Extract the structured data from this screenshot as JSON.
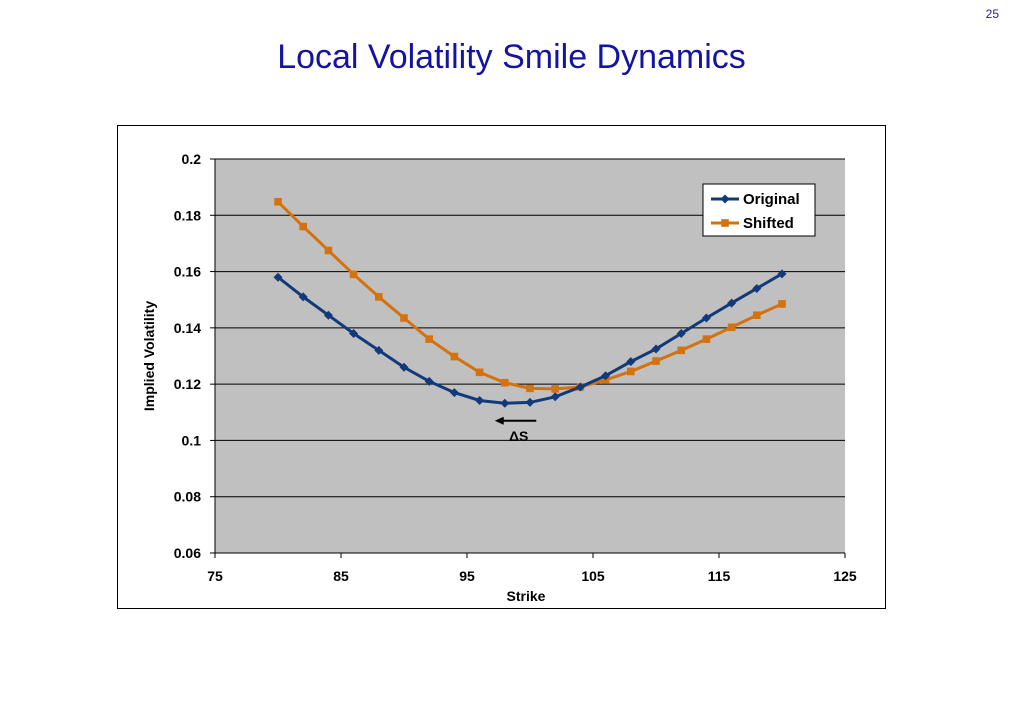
{
  "page_number": "25",
  "title": "Local Volatility Smile Dynamics",
  "colors": {
    "plot_bg": "#c0c0c0",
    "original": "#123a7a",
    "shifted": "#d4720f",
    "title": "#1414a0"
  },
  "chart_data": {
    "type": "line",
    "xlabel": "Strike",
    "ylabel": "Implied Volatility",
    "xlim": [
      75,
      125
    ],
    "ylim": [
      0.06,
      0.2
    ],
    "x_ticks": [
      75,
      85,
      95,
      105,
      115,
      125
    ],
    "y_ticks": [
      0.06,
      0.08,
      0.1,
      0.12,
      0.14,
      0.16,
      0.18,
      0.2
    ],
    "x_tick_labels": [
      "75",
      "85",
      "95",
      "105",
      "115",
      "125"
    ],
    "y_tick_labels": [
      "0.06",
      "0.08",
      "0.1",
      "0.12",
      "0.14",
      "0.16",
      "0.18",
      "0.2"
    ],
    "grid": "horizontal",
    "legend_position": "top-right",
    "x": [
      80,
      82,
      84,
      86,
      88,
      90,
      92,
      94,
      96,
      98,
      100,
      102,
      104,
      106,
      108,
      110,
      112,
      114,
      116,
      118,
      120
    ],
    "series": [
      {
        "name": "Original",
        "marker": "diamond",
        "color": "#123a7a",
        "values": [
          0.158,
          0.151,
          0.1445,
          0.138,
          0.132,
          0.126,
          0.121,
          0.117,
          0.1142,
          0.1132,
          0.1135,
          0.1155,
          0.119,
          0.123,
          0.128,
          0.1325,
          0.138,
          0.1435,
          0.1488,
          0.154,
          0.1592
        ]
      },
      {
        "name": "Shifted",
        "marker": "square",
        "color": "#d4720f",
        "values": [
          0.1848,
          0.176,
          0.1675,
          0.159,
          0.151,
          0.1435,
          0.136,
          0.1298,
          0.1242,
          0.1205,
          0.1185,
          0.1183,
          0.119,
          0.1215,
          0.1245,
          0.1282,
          0.132,
          0.136,
          0.1402,
          0.1445,
          0.1485
        ]
      }
    ],
    "annotation": {
      "text": "ΔS",
      "arrow_from_x": 100.5,
      "arrow_to_x": 97.2,
      "arrow_y": 0.107,
      "label_y": 0.1015,
      "label_x": 99.1
    }
  }
}
